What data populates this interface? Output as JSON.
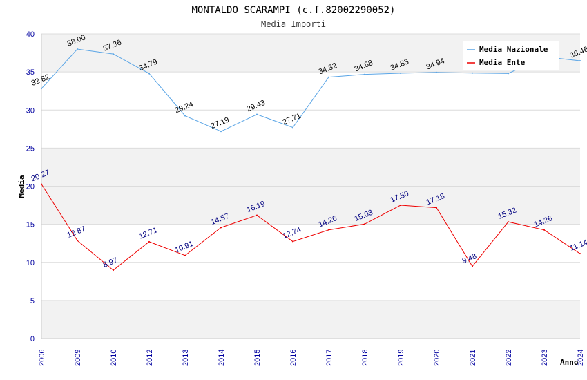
{
  "chart_data": {
    "type": "line",
    "title": "MONTALDO SCARAMPI (c.f.82002290052)",
    "subtitle": "Media Importi",
    "xlabel": "Anno",
    "ylabel": "Media",
    "ylim": [
      0,
      40
    ],
    "yticks": [
      0,
      5,
      10,
      15,
      20,
      25,
      30,
      35,
      40
    ],
    "categories": [
      "2006",
      "2009",
      "2010",
      "2012",
      "2013",
      "2014",
      "2015",
      "2016",
      "2017",
      "2018",
      "2019",
      "2020",
      "2021",
      "2022",
      "2023",
      "2024"
    ],
    "series": [
      {
        "name": "Media Nazionale",
        "color": "#5aa5e6",
        "values": [
          32.82,
          38.0,
          37.36,
          34.79,
          29.24,
          27.19,
          29.43,
          27.71,
          34.32,
          34.68,
          34.83,
          34.94,
          34.85,
          34.8,
          37.0,
          36.46
        ],
        "labels": [
          "32.82",
          "38.00",
          "37.36",
          "34.79",
          "29.24",
          "27.19",
          "29.43",
          "27.71",
          "34.32",
          "34.68",
          "34.83",
          "34.94",
          "",
          "",
          "",
          "36.46"
        ]
      },
      {
        "name": "Media Ente",
        "color": "#ee0000",
        "values": [
          20.27,
          12.87,
          8.97,
          12.71,
          10.91,
          14.57,
          16.19,
          12.74,
          14.26,
          15.03,
          17.5,
          17.18,
          9.48,
          15.32,
          14.26,
          11.14
        ],
        "labels": [
          "20.27",
          "12.87",
          "8.97",
          "12.71",
          "10.91",
          "14.57",
          "16.19",
          "12.74",
          "14.26",
          "15.03",
          "17.50",
          "17.18",
          "9.48",
          "15.32",
          "14.26",
          "11.14"
        ]
      }
    ],
    "legend_position": "top-right",
    "grid": true
  }
}
